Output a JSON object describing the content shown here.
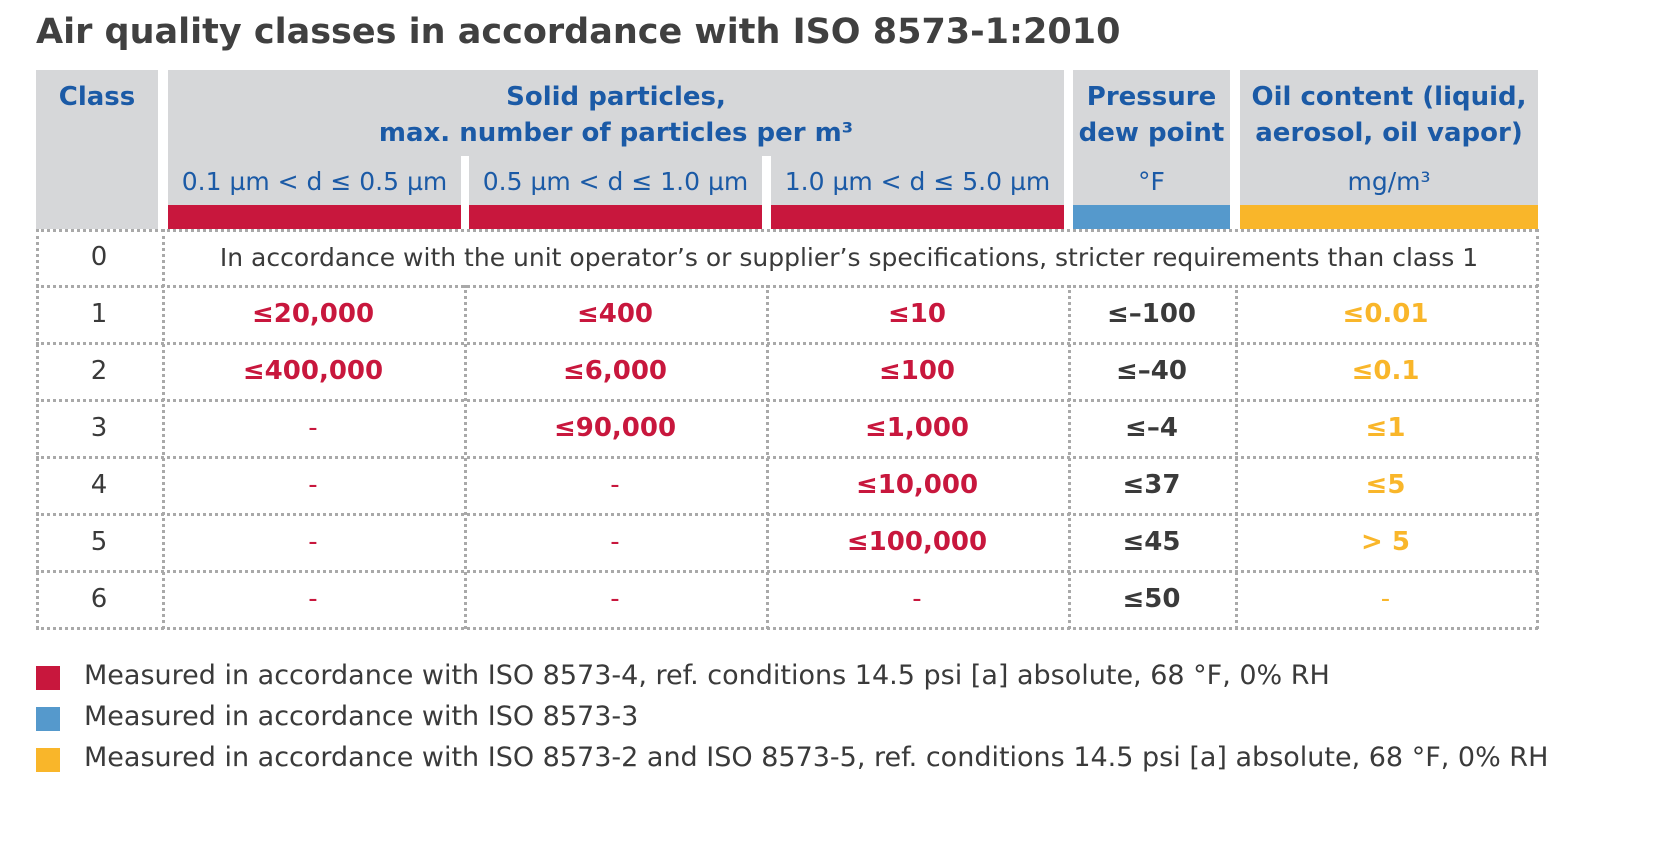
{
  "title": "Air quality classes in accordance with ISO 8573-1:2010",
  "colors": {
    "red": "#c8173d",
    "blue": "#5599cc",
    "yellow": "#f9b62a",
    "header_bg": "#d6d7d9",
    "header_text": "#1b5aa6"
  },
  "header": {
    "class": "Class",
    "solid_line1": "Solid particles,",
    "solid_line2": "max. number of particles per m³",
    "sub1": "0.1 µm < d ≤ 0.5 µm",
    "sub2": "0.5 µm < d ≤ 1.0 µm",
    "sub3": "1.0 µm < d ≤ 5.0 µm",
    "dew_line1": "Pressure",
    "dew_line2": "dew point",
    "dew_unit": "°F",
    "oil_line1": "Oil content (liquid,",
    "oil_line2": "aerosol, oil vapor)",
    "oil_unit": "mg/m³"
  },
  "row0": {
    "cls": "0",
    "text": "In accordance with the unit operator’s or supplier’s specifications, stricter requirements than class 1"
  },
  "rows": [
    {
      "cls": "1",
      "p1": "≤20,000",
      "p2": "≤400",
      "p3": "≤10",
      "dew": "≤–100",
      "oil": "≤0.01"
    },
    {
      "cls": "2",
      "p1": "≤400,000",
      "p2": "≤6,000",
      "p3": "≤100",
      "dew": "≤–40",
      "oil": "≤0.1"
    },
    {
      "cls": "3",
      "p1": "-",
      "p2": "≤90,000",
      "p3": "≤1,000",
      "dew": "≤–4",
      "oil": "≤1"
    },
    {
      "cls": "4",
      "p1": "-",
      "p2": "-",
      "p3": "≤10,000",
      "dew": "≤37",
      "oil": "≤5"
    },
    {
      "cls": "5",
      "p1": "-",
      "p2": "-",
      "p3": "≤100,000",
      "dew": "≤45",
      "oil": "> 5"
    },
    {
      "cls": "6",
      "p1": "-",
      "p2": "-",
      "p3": "-",
      "dew": "≤50",
      "oil": "-"
    }
  ],
  "legend": [
    {
      "color": "#c8173d",
      "text": "Measured in accordance with ISO 8573-4, ref. conditions 14.5 psi [a] absolute, 68 °F, 0% RH"
    },
    {
      "color": "#5599cc",
      "text": "Measured in accordance with ISO 8573-3"
    },
    {
      "color": "#f9b62a",
      "text": "Measured in accordance with ISO 8573-2 and ISO 8573-5, ref. conditions 14.5 psi [a] absolute, 68 °F, 0% RH"
    }
  ]
}
